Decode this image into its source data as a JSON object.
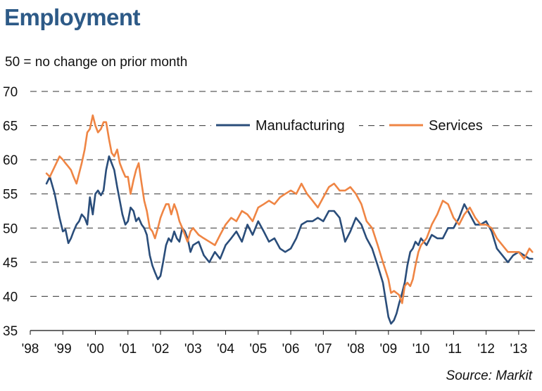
{
  "title": "Employment",
  "subtitle": "50 = no change on prior month",
  "source": "Source: Markit",
  "colors": {
    "manufacturing": "#2a4d7a",
    "services": "#ef8544",
    "grid": "#333333"
  },
  "chart_data": {
    "type": "line",
    "ylim": [
      35,
      70
    ],
    "yticks": [
      "35",
      "40",
      "45",
      "50",
      "55",
      "60",
      "65",
      "70"
    ],
    "xlim": [
      1998,
      2013.5
    ],
    "xticks": [
      "'98",
      "'99",
      "'00",
      "'01",
      "'02",
      "'03",
      "'04",
      "'05",
      "'06",
      "'07",
      "'08",
      "'09",
      "'10",
      "'11",
      "'12",
      "'13"
    ],
    "grid": true,
    "legend": "top-right",
    "series": [
      {
        "name": "Manufacturing",
        "x": [
          1998.5,
          1998.6,
          1998.75,
          1998.9,
          1999.0,
          1999.08,
          1999.17,
          1999.25,
          1999.33,
          1999.42,
          1999.5,
          1999.58,
          1999.67,
          1999.75,
          1999.83,
          1999.92,
          2000.0,
          2000.08,
          2000.17,
          2000.25,
          2000.33,
          2000.42,
          2000.5,
          2000.58,
          2000.67,
          2000.75,
          2000.83,
          2000.92,
          2001.0,
          2001.08,
          2001.17,
          2001.25,
          2001.33,
          2001.42,
          2001.5,
          2001.58,
          2001.67,
          2001.75,
          2001.83,
          2001.92,
          2002.0,
          2002.08,
          2002.17,
          2002.25,
          2002.33,
          2002.42,
          2002.5,
          2002.58,
          2002.67,
          2002.75,
          2002.83,
          2002.92,
          2003.0,
          2003.17,
          2003.33,
          2003.5,
          2003.67,
          2003.83,
          2004.0,
          2004.17,
          2004.33,
          2004.5,
          2004.67,
          2004.83,
          2005.0,
          2005.17,
          2005.33,
          2005.5,
          2005.67,
          2005.83,
          2006.0,
          2006.17,
          2006.33,
          2006.5,
          2006.67,
          2006.83,
          2007.0,
          2007.17,
          2007.33,
          2007.5,
          2007.67,
          2007.83,
          2008.0,
          2008.17,
          2008.33,
          2008.5,
          2008.67,
          2008.83,
          2009.0,
          2009.08,
          2009.17,
          2009.25,
          2009.33,
          2009.42,
          2009.5,
          2009.58,
          2009.67,
          2009.75,
          2009.83,
          2009.92,
          2010.0,
          2010.17,
          2010.33,
          2010.5,
          2010.67,
          2010.83,
          2011.0,
          2011.17,
          2011.33,
          2011.5,
          2011.67,
          2011.83,
          2012.0,
          2012.17,
          2012.33,
          2012.5,
          2012.67,
          2012.83,
          2013.0,
          2013.17,
          2013.33,
          2013.42
        ],
        "values": [
          56.5,
          57.5,
          55.0,
          51.5,
          49.5,
          49.8,
          47.8,
          48.5,
          49.5,
          50.5,
          51.0,
          52.0,
          51.5,
          50.5,
          54.5,
          52.0,
          55.0,
          55.5,
          54.8,
          55.5,
          58.5,
          60.5,
          59.5,
          58.5,
          56.0,
          54.0,
          52.0,
          50.5,
          51.0,
          53.0,
          52.5,
          51.0,
          51.5,
          50.5,
          50.0,
          49.0,
          46.0,
          44.5,
          43.5,
          42.5,
          43.0,
          45.0,
          47.5,
          48.5,
          48.0,
          49.5,
          48.5,
          48.0,
          50.0,
          49.5,
          48.5,
          46.5,
          47.5,
          48.0,
          46.0,
          45.0,
          46.5,
          45.5,
          47.5,
          48.5,
          49.5,
          48.0,
          50.5,
          49.0,
          51.0,
          49.5,
          48.0,
          48.5,
          47.0,
          46.5,
          47.0,
          48.5,
          50.5,
          51.0,
          51.0,
          51.5,
          51.0,
          52.5,
          52.5,
          51.5,
          48.0,
          49.5,
          51.5,
          50.5,
          48.5,
          47.0,
          44.5,
          42.0,
          37.0,
          36.0,
          36.5,
          37.5,
          39.0,
          40.5,
          42.0,
          44.5,
          46.5,
          47.0,
          48.0,
          47.5,
          48.5,
          47.5,
          49.0,
          48.5,
          48.5,
          50.0,
          50.0,
          51.5,
          53.5,
          52.0,
          50.5,
          50.5,
          51.0,
          49.5,
          47.0,
          46.0,
          45.0,
          46.0,
          46.5,
          46.0,
          45.5,
          45.5
        ],
        "color_key": "manufacturing"
      },
      {
        "name": "Services",
        "x": [
          1998.5,
          1998.6,
          1998.75,
          1998.9,
          1999.0,
          1999.08,
          1999.17,
          1999.25,
          1999.33,
          1999.42,
          1999.5,
          1999.58,
          1999.67,
          1999.75,
          1999.83,
          1999.92,
          2000.0,
          2000.08,
          2000.17,
          2000.25,
          2000.33,
          2000.42,
          2000.5,
          2000.58,
          2000.67,
          2000.75,
          2000.83,
          2000.92,
          2001.0,
          2001.08,
          2001.17,
          2001.25,
          2001.33,
          2001.42,
          2001.5,
          2001.58,
          2001.67,
          2001.75,
          2001.83,
          2001.92,
          2002.0,
          2002.08,
          2002.17,
          2002.25,
          2002.33,
          2002.42,
          2002.5,
          2002.58,
          2002.67,
          2002.75,
          2002.83,
          2002.92,
          2003.0,
          2003.17,
          2003.33,
          2003.5,
          2003.67,
          2003.83,
          2004.0,
          2004.17,
          2004.33,
          2004.5,
          2004.67,
          2004.83,
          2005.0,
          2005.17,
          2005.33,
          2005.5,
          2005.67,
          2005.83,
          2006.0,
          2006.17,
          2006.33,
          2006.5,
          2006.67,
          2006.83,
          2007.0,
          2007.17,
          2007.33,
          2007.5,
          2007.67,
          2007.83,
          2008.0,
          2008.17,
          2008.33,
          2008.5,
          2008.67,
          2008.83,
          2009.0,
          2009.08,
          2009.17,
          2009.25,
          2009.33,
          2009.42,
          2009.5,
          2009.58,
          2009.67,
          2009.75,
          2009.83,
          2009.92,
          2010.0,
          2010.17,
          2010.33,
          2010.5,
          2010.67,
          2010.83,
          2011.0,
          2011.17,
          2011.33,
          2011.5,
          2011.67,
          2011.83,
          2012.0,
          2012.17,
          2012.33,
          2012.5,
          2012.67,
          2012.83,
          2013.0,
          2013.17,
          2013.33,
          2013.42
        ],
        "values": [
          58.0,
          57.5,
          59.0,
          60.5,
          60.0,
          59.5,
          59.0,
          58.5,
          57.5,
          56.5,
          58.0,
          59.5,
          61.5,
          64.0,
          64.5,
          66.5,
          65.0,
          64.0,
          64.5,
          65.5,
          65.5,
          63.0,
          61.0,
          60.5,
          61.5,
          59.5,
          58.5,
          57.5,
          57.5,
          55.0,
          57.0,
          58.5,
          59.5,
          56.5,
          54.0,
          52.5,
          50.0,
          49.5,
          48.5,
          50.0,
          51.5,
          52.5,
          53.5,
          53.5,
          52.0,
          53.5,
          52.5,
          51.0,
          50.0,
          49.0,
          48.0,
          49.5,
          50.0,
          49.0,
          48.5,
          48.0,
          47.5,
          49.0,
          50.5,
          51.5,
          51.0,
          52.5,
          52.0,
          51.0,
          53.0,
          53.5,
          54.0,
          53.5,
          54.5,
          55.0,
          55.5,
          55.0,
          56.5,
          55.0,
          54.0,
          53.0,
          54.5,
          56.0,
          56.5,
          55.5,
          55.5,
          56.0,
          55.0,
          53.5,
          51.0,
          50.0,
          47.5,
          45.0,
          42.5,
          40.5,
          40.8,
          40.5,
          40.2,
          39.0,
          41.5,
          42.0,
          41.5,
          42.5,
          44.5,
          46.5,
          47.5,
          48.5,
          50.5,
          52.0,
          54.0,
          53.5,
          51.5,
          50.5,
          52.0,
          53.0,
          51.5,
          50.5,
          50.5,
          50.0,
          48.5,
          47.5,
          46.5,
          46.5,
          46.5,
          45.5,
          47.0,
          46.5
        ],
        "color_key": "services"
      }
    ]
  }
}
